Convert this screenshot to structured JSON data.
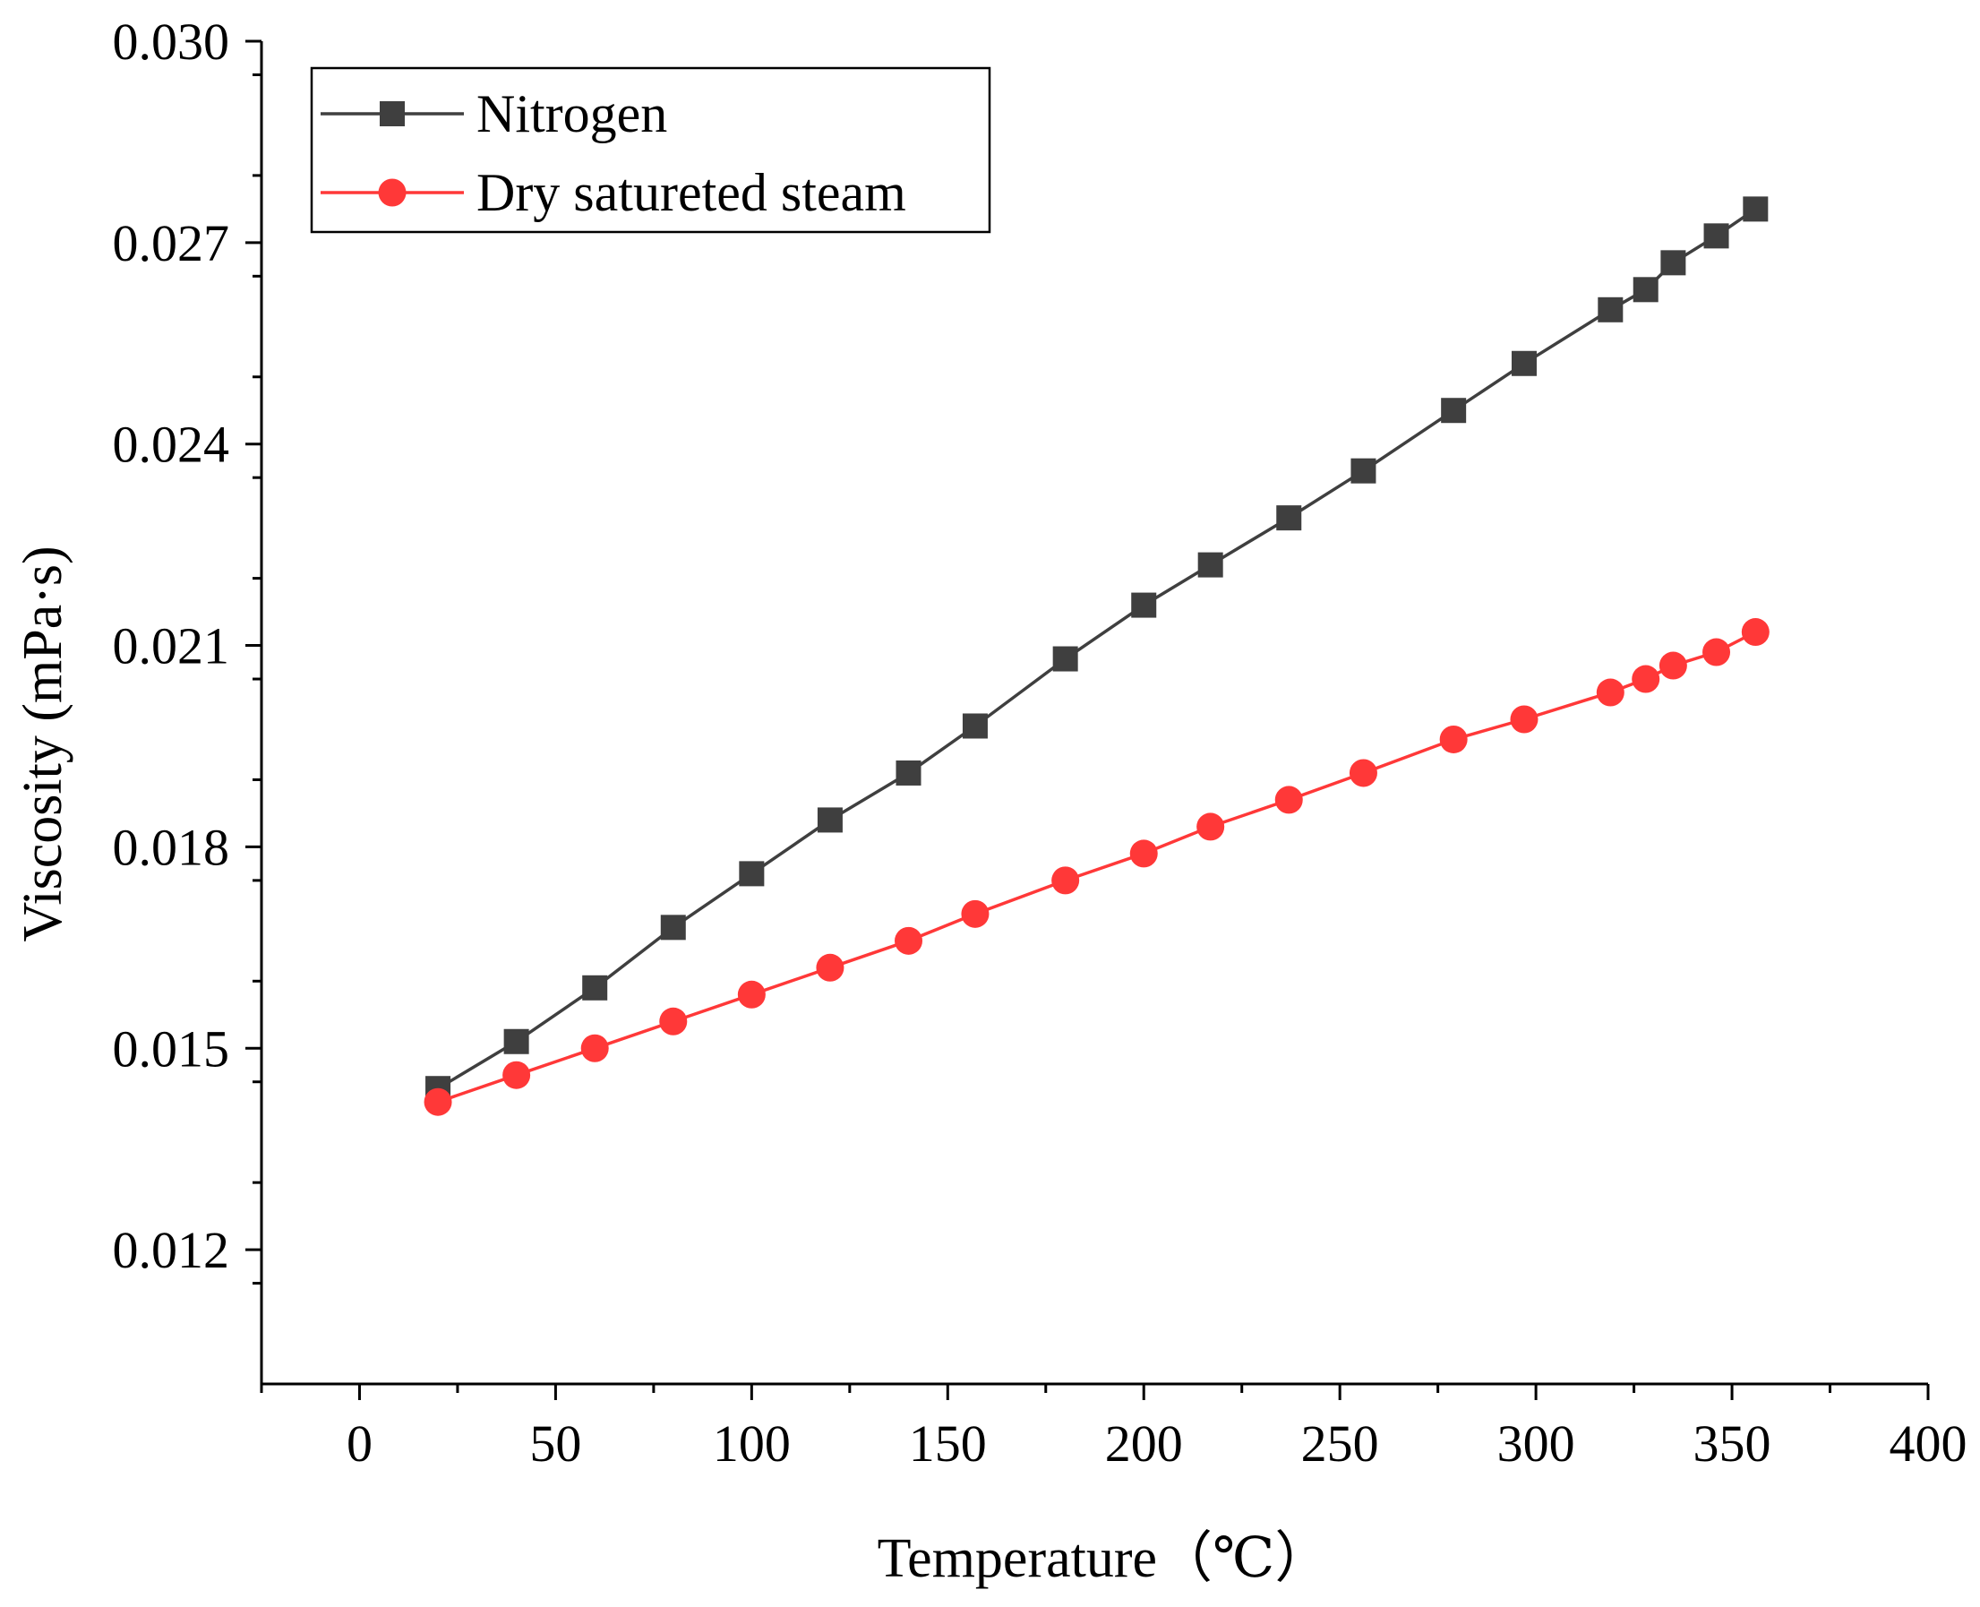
{
  "chart_data": {
    "type": "line",
    "title": "",
    "xlabel": "Temperature（℃）",
    "ylabel": "Viscosity (mPa·s)",
    "xlim": [
      -25,
      400
    ],
    "ylim": [
      0.01,
      0.03
    ],
    "grid": false,
    "legend_position": "top-left",
    "x_ticks": [
      0,
      50,
      100,
      150,
      200,
      250,
      300,
      350,
      400
    ],
    "x_tick_labels": [
      "0",
      "50",
      "100",
      "150",
      "200",
      "250",
      "300",
      "350",
      "400"
    ],
    "y_ticks": [
      0.012,
      0.015,
      0.018,
      0.021,
      0.024,
      0.027,
      0.03
    ],
    "y_tick_labels": [
      "0.012",
      "0.015",
      "0.018",
      "0.021",
      "0.024",
      "0.027",
      "0.030"
    ],
    "series": [
      {
        "name": "Nitrogen",
        "color": "#3f3f3f",
        "marker": "square",
        "x": [
          20,
          40,
          60,
          80,
          100,
          120,
          140,
          157,
          180,
          200,
          217,
          237,
          256,
          279,
          297,
          319,
          328,
          335,
          346,
          356
        ],
        "values": [
          0.0144,
          0.0151,
          0.0159,
          0.0168,
          0.0176,
          0.0184,
          0.0191,
          0.0198,
          0.0208,
          0.0216,
          0.0222,
          0.0229,
          0.0236,
          0.0245,
          0.0252,
          0.026,
          0.0263,
          0.0267,
          0.0271,
          0.0275
        ]
      },
      {
        "name": "Dry satureted steam",
        "color": "#ff3838",
        "marker": "circle",
        "x": [
          20,
          40,
          60,
          80,
          100,
          120,
          140,
          157,
          180,
          200,
          217,
          237,
          256,
          279,
          297,
          319,
          328,
          335,
          346,
          356
        ],
        "values": [
          0.0142,
          0.0146,
          0.015,
          0.0154,
          0.0158,
          0.0162,
          0.0166,
          0.017,
          0.0175,
          0.0179,
          0.0183,
          0.0187,
          0.0191,
          0.0196,
          0.0199,
          0.0203,
          0.0205,
          0.0207,
          0.0209,
          0.0212
        ]
      }
    ]
  }
}
